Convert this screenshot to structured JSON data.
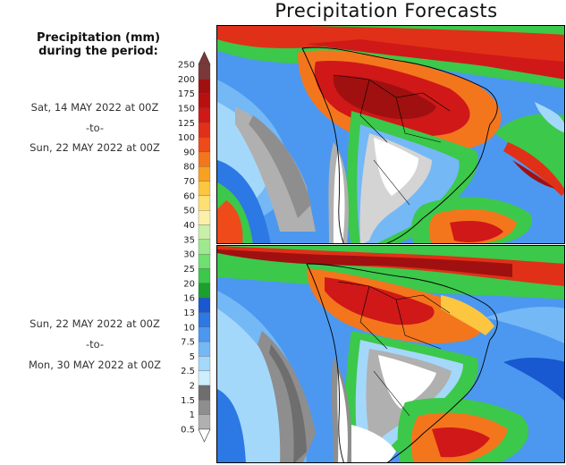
{
  "title": "Precipitation Forecasts",
  "legend": {
    "heading_line1": "Precipitation (mm)",
    "heading_line2": "during the period:",
    "levels": [
      {
        "label": "250",
        "color": "#7a3838"
      },
      {
        "label": "200",
        "color": "#a01010"
      },
      {
        "label": "175",
        "color": "#b81010"
      },
      {
        "label": "150",
        "color": "#d01818"
      },
      {
        "label": "125",
        "color": "#e03018"
      },
      {
        "label": "100",
        "color": "#ee4a1a"
      },
      {
        "label": "90",
        "color": "#f4761c"
      },
      {
        "label": "80",
        "color": "#f8a020"
      },
      {
        "label": "70",
        "color": "#fcc640"
      },
      {
        "label": "60",
        "color": "#fde070"
      },
      {
        "label": "50",
        "color": "#fcf0a8"
      },
      {
        "label": "40",
        "color": "#c8f0a8"
      },
      {
        "label": "35",
        "color": "#9ee890"
      },
      {
        "label": "30",
        "color": "#6ee070"
      },
      {
        "label": "25",
        "color": "#3cc84a"
      },
      {
        "label": "20",
        "color": "#1aa02e"
      },
      {
        "label": "16",
        "color": "#1858d0"
      },
      {
        "label": "13",
        "color": "#2c78e4"
      },
      {
        "label": "10",
        "color": "#4c98f0"
      },
      {
        "label": "7.5",
        "color": "#74b8f6"
      },
      {
        "label": "5",
        "color": "#a4d8fa"
      },
      {
        "label": "2.5",
        "color": "#cdeefc"
      },
      {
        "label": "2",
        "color": "#6e6e6e"
      },
      {
        "label": "1.5",
        "color": "#8e8e8e"
      },
      {
        "label": "1",
        "color": "#b0b0b0"
      },
      {
        "label": "0.5",
        "color": "#d4d4d4"
      }
    ]
  },
  "periods": [
    {
      "start": "Sat, 14 MAY 2022 at 00Z",
      "sep": "-to-",
      "end": "Sun, 22 MAY 2022 at 00Z"
    },
    {
      "start": "Sun, 22 MAY 2022 at 00Z",
      "sep": "-to-",
      "end": "Mon, 30 MAY 2022 at 00Z"
    }
  ]
}
